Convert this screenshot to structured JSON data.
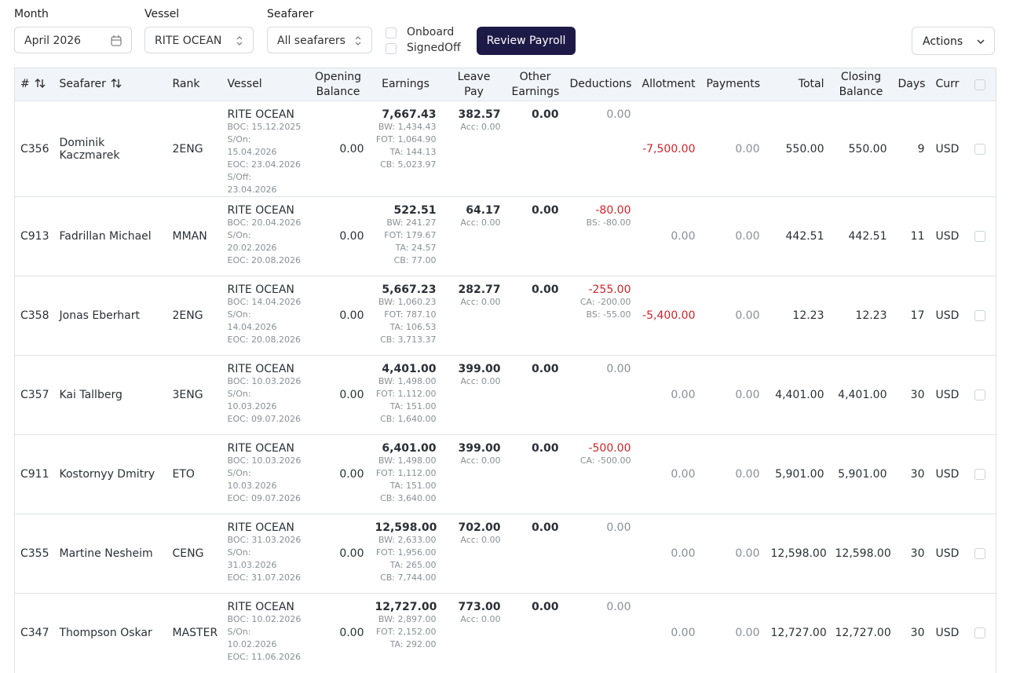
{
  "filters": {
    "month_label": "Month",
    "month_value": "April 2026",
    "vessel_label": "Vessel",
    "vessel_value": "RITE OCEAN",
    "seafarer_label": "Seafarer",
    "seafarer_value": "All seafarers",
    "onboard": "Onboard",
    "signedoff": "SignedOff",
    "review_button": "Review Payroll",
    "actions_button": "Actions"
  },
  "table": {
    "headers": [
      "#",
      "Seafarer",
      "Rank",
      "Vessel",
      "Opening Balance",
      "Earnings",
      "Leave Pay",
      "Other Earnings",
      "Deductions",
      "Allotment",
      "Payments",
      "Total",
      "Closing Balance",
      "Days",
      "Curr"
    ],
    "rows": [
      {
        "id": "C356",
        "name": "Dominik Kaczmarek",
        "rank": "2ENG",
        "vessel": "RITE OCEAN",
        "vessel_details": [
          "BOC: 15.12.2025",
          "S/On: 15.04.2026",
          "EOC: 23.04.2026",
          "S/Off: 23.04.2026"
        ],
        "opening": "0.00",
        "earnings": "7,667.43",
        "earnings_details": [
          "BW: 1,434.43",
          "FOT: 1,064.90",
          "TA: 144.13",
          "CB: 5,023.97"
        ],
        "leave_pay": "382.57",
        "leave_details": [
          "Acc: 0.00"
        ],
        "other": "0.00",
        "deductions": "0.00",
        "deduction_details": [],
        "allotment": "-7,500.00",
        "payments": "0.00",
        "total": "550.00",
        "closing": "550.00",
        "days": "9",
        "curr": "USD"
      },
      {
        "id": "C913",
        "name": "Fadrillan Michael",
        "rank": "MMAN",
        "vessel": "RITE OCEAN",
        "vessel_details": [
          "BOC: 20.04.2026",
          "S/On: 20.02.2026",
          "EOC: 20.08.2026"
        ],
        "opening": "0.00",
        "earnings": "522.51",
        "earnings_details": [
          "BW: 241.27",
          "FOT: 179.67",
          "TA: 24.57",
          "CB: 77.00"
        ],
        "leave_pay": "64.17",
        "leave_details": [
          "Acc: 0.00"
        ],
        "other": "0.00",
        "deductions": "-80.00",
        "deduction_details": [
          "BS: -80.00"
        ],
        "allotment": "0.00",
        "payments": "0.00",
        "total": "442.51",
        "closing": "442.51",
        "days": "11",
        "curr": "USD"
      },
      {
        "id": "C358",
        "name": "Jonas Eberhart",
        "rank": "2ENG",
        "vessel": "RITE OCEAN",
        "vessel_details": [
          "BOC: 14.04.2026",
          "S/On: 14.04.2026",
          "EOC: 20.08.2026"
        ],
        "opening": "0.00",
        "earnings": "5,667.23",
        "earnings_details": [
          "BW: 1,060.23",
          "FOT: 787.10",
          "TA: 106.53",
          "CB: 3,713.37"
        ],
        "leave_pay": "282.77",
        "leave_details": [
          "Acc: 0.00"
        ],
        "other": "0.00",
        "deductions": "-255.00",
        "deduction_details": [
          "CA: -200.00",
          "BS: -55.00"
        ],
        "allotment": "-5,400.00",
        "payments": "0.00",
        "total": "12.23",
        "closing": "12.23",
        "days": "17",
        "curr": "USD"
      },
      {
        "id": "C357",
        "name": "Kai Tallberg",
        "rank": "3ENG",
        "vessel": "RITE OCEAN",
        "vessel_details": [
          "BOC: 10.03.2026",
          "S/On: 10.03.2026",
          "EOC: 09.07.2026"
        ],
        "opening": "0.00",
        "earnings": "4,401.00",
        "earnings_details": [
          "BW: 1,498.00",
          "FOT: 1,112.00",
          "TA: 151.00",
          "CB: 1,640.00"
        ],
        "leave_pay": "399.00",
        "leave_details": [
          "Acc: 0.00"
        ],
        "other": "0.00",
        "deductions": "0.00",
        "deduction_details": [],
        "allotment": "0.00",
        "payments": "0.00",
        "total": "4,401.00",
        "closing": "4,401.00",
        "days": "30",
        "curr": "USD"
      },
      {
        "id": "C911",
        "name": "Kostornyy Dmitry",
        "rank": "ETO",
        "vessel": "RITE OCEAN",
        "vessel_details": [
          "BOC: 10.03.2026",
          "S/On: 10.03.2026",
          "EOC: 09.07.2026"
        ],
        "opening": "0.00",
        "earnings": "6,401.00",
        "earnings_details": [
          "BW: 1,498.00",
          "FOT: 1,112.00",
          "TA: 151.00",
          "CB: 3,640.00"
        ],
        "leave_pay": "399.00",
        "leave_details": [
          "Acc: 0.00"
        ],
        "other": "0.00",
        "deductions": "-500.00",
        "deduction_details": [
          "CA: -500.00"
        ],
        "allotment": "0.00",
        "payments": "0.00",
        "total": "5,901.00",
        "closing": "5,901.00",
        "days": "30",
        "curr": "USD"
      },
      {
        "id": "C355",
        "name": "Martine Nesheim",
        "rank": "CENG",
        "vessel": "RITE OCEAN",
        "vessel_details": [
          "BOC: 31.03.2026",
          "S/On: 31.03.2026",
          "EOC: 31.07.2026"
        ],
        "opening": "0.00",
        "earnings": "12,598.00",
        "earnings_details": [
          "BW: 2,633.00",
          "FOT: 1,956.00",
          "TA: 265.00",
          "CB: 7,744.00"
        ],
        "leave_pay": "702.00",
        "leave_details": [
          "Acc: 0.00"
        ],
        "other": "0.00",
        "deductions": "0.00",
        "deduction_details": [],
        "allotment": "0.00",
        "payments": "0.00",
        "total": "12,598.00",
        "closing": "12,598.00",
        "days": "30",
        "curr": "USD"
      },
      {
        "id": "C347",
        "name": "Thompson Oskar",
        "rank": "MASTER",
        "vessel": "RITE OCEAN",
        "vessel_details": [
          "BOC: 10.02.2026",
          "S/On: 10.02.2026",
          "EOC: 11.06.2026"
        ],
        "opening": "0.00",
        "earnings": "12,727.00",
        "earnings_details": [
          "BW: 2,897.00",
          "FOT: 2,152.00",
          "TA: 292.00"
        ],
        "leave_pay": "773.00",
        "leave_details": [
          "Acc: 0.00"
        ],
        "other": "0.00",
        "deductions": "0.00",
        "deduction_details": [],
        "allotment": "0.00",
        "payments": "0.00",
        "total": "12,727.00",
        "closing": "12,727.00",
        "days": "30",
        "curr": "USD"
      }
    ]
  }
}
